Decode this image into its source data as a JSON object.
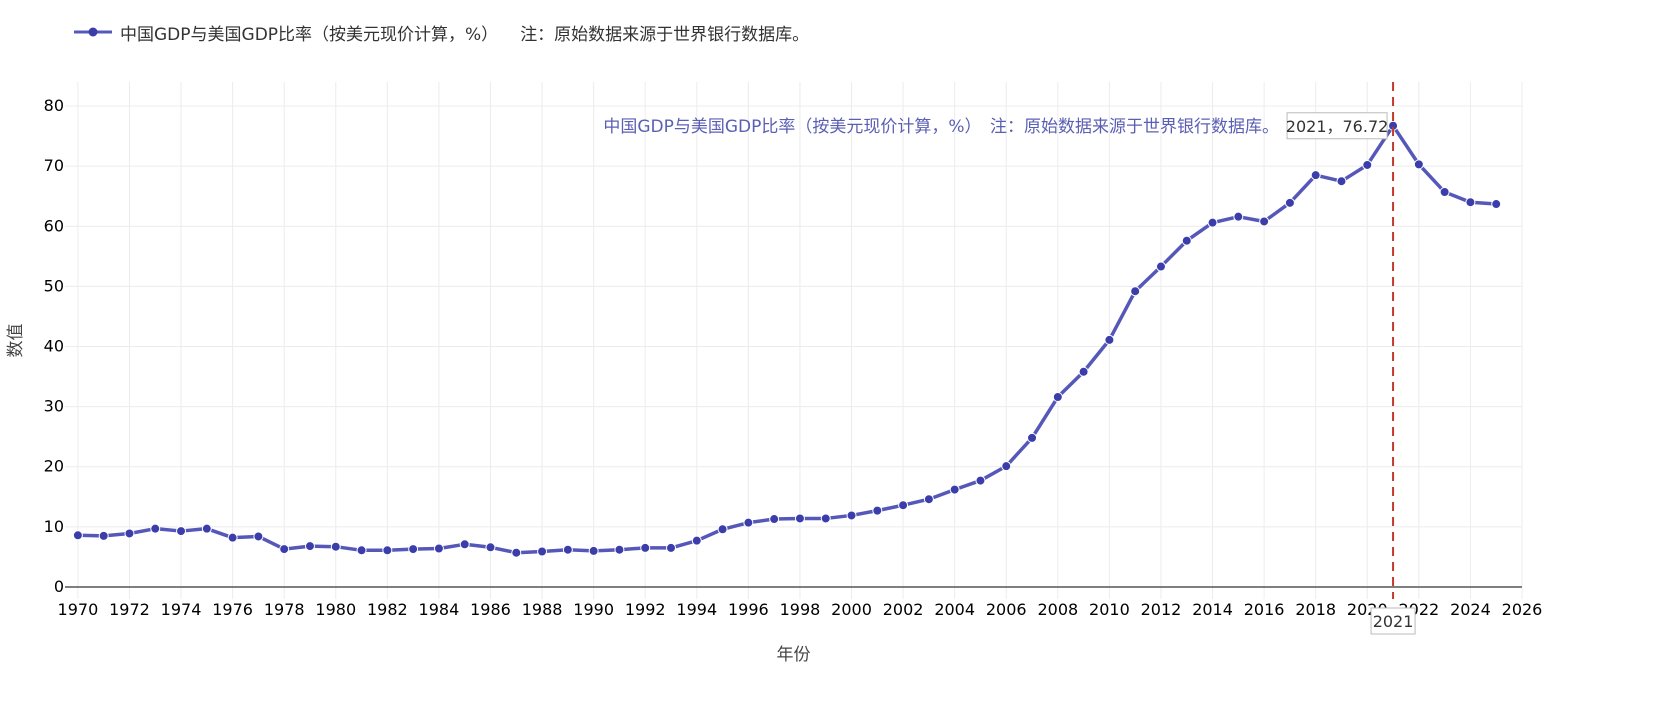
{
  "legend": {
    "label": "中国GDP与美国GDP比率（按美元现价计算，%）",
    "note": "注：原始数据来源于世界银行数据库。"
  },
  "annotation": {
    "text": "中国GDP与美国GDP比率（按美元现价计算，%）　注：原始数据来源于世界银行数据库。",
    "tooltip": "2021，76.72"
  },
  "chart_data": {
    "type": "line",
    "xlabel": "年份",
    "ylabel": "数值",
    "xlim": [
      1969.5,
      2026
    ],
    "ylim": [
      -2,
      84
    ],
    "x_ticks": [
      1970,
      1972,
      1974,
      1976,
      1978,
      1980,
      1982,
      1984,
      1986,
      1988,
      1990,
      1992,
      1994,
      1996,
      1998,
      2000,
      2002,
      2004,
      2006,
      2008,
      2010,
      2012,
      2014,
      2016,
      2018,
      2020,
      2022,
      2024,
      2026
    ],
    "y_ticks": [
      0,
      10,
      20,
      30,
      40,
      50,
      60,
      70,
      80
    ],
    "grid": true,
    "legend_position": "top-left",
    "series": [
      {
        "name": "中国GDP与美国GDP比率（按美元现价计算，%）",
        "color": "#5558b8",
        "x": [
          1970,
          1971,
          1972,
          1973,
          1974,
          1975,
          1976,
          1977,
          1978,
          1979,
          1980,
          1981,
          1982,
          1983,
          1984,
          1985,
          1986,
          1987,
          1988,
          1989,
          1990,
          1991,
          1992,
          1993,
          1994,
          1995,
          1996,
          1997,
          1998,
          1999,
          2000,
          2001,
          2002,
          2003,
          2004,
          2005,
          2006,
          2007,
          2008,
          2009,
          2010,
          2011,
          2012,
          2013,
          2014,
          2015,
          2016,
          2017,
          2018,
          2019,
          2020,
          2021,
          2022,
          2023,
          2024,
          2025
        ],
        "y": [
          8.6,
          8.5,
          8.9,
          9.7,
          9.3,
          9.7,
          8.2,
          8.4,
          6.3,
          6.8,
          6.7,
          6.1,
          6.1,
          6.3,
          6.4,
          7.1,
          6.6,
          5.7,
          5.9,
          6.2,
          6.0,
          6.2,
          6.5,
          6.5,
          7.7,
          9.6,
          10.7,
          11.3,
          11.4,
          11.4,
          11.9,
          12.7,
          13.6,
          14.6,
          16.2,
          17.7,
          20.1,
          24.8,
          31.6,
          35.8,
          41.1,
          49.2,
          53.3,
          57.6,
          60.6,
          61.6,
          60.8,
          63.9,
          68.5,
          67.5,
          70.2,
          76.72,
          70.3,
          65.7,
          64.0,
          63.7
        ]
      }
    ],
    "reference_line": {
      "x": 2021,
      "color": "#c0392b",
      "style": "dashed"
    },
    "highlight": {
      "x": 2021,
      "x_label": "2021",
      "y": 76.72
    }
  }
}
